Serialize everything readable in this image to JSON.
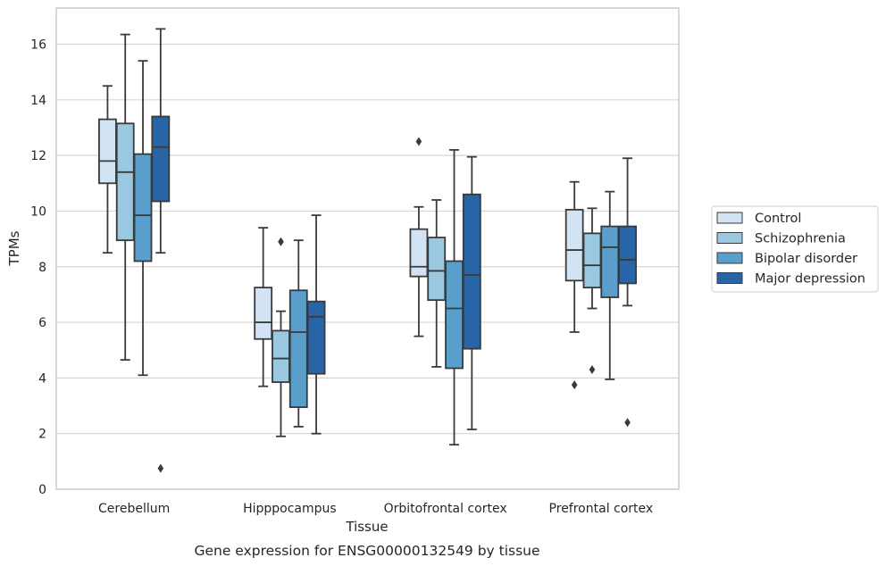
{
  "caption": "Gene expression for ENSG00000132549 by tissue",
  "chart_data": {
    "type": "box",
    "xlabel": "Tissue",
    "ylabel": "TPMs",
    "ylim": [
      0,
      17.3
    ],
    "yticks": [
      0,
      2,
      4,
      6,
      8,
      10,
      12,
      14,
      16
    ],
    "grid": "horizontal",
    "legend_position": "outside-right",
    "categories": [
      "Cerebellum",
      "Hipppocampus",
      "Orbitofrontal cortex",
      "Prefrontal cortex"
    ],
    "series": [
      {
        "name": "Control",
        "color": "#d2e3f3",
        "boxes": [
          {
            "whislo": 8.5,
            "q1": 11.0,
            "med": 11.8,
            "q3": 13.3,
            "whishi": 14.5,
            "fliers": []
          },
          {
            "whislo": 3.7,
            "q1": 5.4,
            "med": 6.0,
            "q3": 7.25,
            "whishi": 9.4,
            "fliers": []
          },
          {
            "whislo": 5.5,
            "q1": 7.65,
            "med": 8.0,
            "q3": 9.35,
            "whishi": 10.15,
            "fliers": [
              12.5
            ]
          },
          {
            "whislo": 5.65,
            "q1": 7.5,
            "med": 8.6,
            "q3": 10.05,
            "whishi": 11.05,
            "fliers": [
              3.75
            ]
          }
        ]
      },
      {
        "name": "Schizophrenia",
        "color": "#9ac8e0",
        "boxes": [
          {
            "whislo": 4.65,
            "q1": 8.95,
            "med": 11.4,
            "q3": 13.15,
            "whishi": 16.35,
            "fliers": []
          },
          {
            "whislo": 1.9,
            "q1": 3.85,
            "med": 4.7,
            "q3": 5.7,
            "whishi": 6.4,
            "fliers": [
              8.9
            ]
          },
          {
            "whislo": 4.4,
            "q1": 6.8,
            "med": 7.85,
            "q3": 9.05,
            "whishi": 10.4,
            "fliers": []
          },
          {
            "whislo": 6.5,
            "q1": 7.25,
            "med": 8.05,
            "q3": 9.2,
            "whishi": 10.1,
            "fliers": [
              4.3
            ]
          }
        ]
      },
      {
        "name": "Bipolar disorder",
        "color": "#5a9fcb",
        "boxes": [
          {
            "whislo": 4.1,
            "q1": 8.2,
            "med": 9.85,
            "q3": 12.05,
            "whishi": 15.4,
            "fliers": []
          },
          {
            "whislo": 2.25,
            "q1": 2.95,
            "med": 5.65,
            "q3": 7.15,
            "whishi": 8.95,
            "fliers": []
          },
          {
            "whislo": 1.6,
            "q1": 4.35,
            "med": 6.5,
            "q3": 8.2,
            "whishi": 12.2,
            "fliers": []
          },
          {
            "whislo": 3.95,
            "q1": 6.9,
            "med": 8.7,
            "q3": 9.45,
            "whishi": 10.7,
            "fliers": []
          }
        ]
      },
      {
        "name": "Major depression",
        "color": "#2865a6",
        "boxes": [
          {
            "whislo": 8.5,
            "q1": 10.35,
            "med": 12.3,
            "q3": 13.4,
            "whishi": 16.55,
            "fliers": [
              0.75
            ]
          },
          {
            "whislo": 2.0,
            "q1": 4.15,
            "med": 6.2,
            "q3": 6.75,
            "whishi": 9.85,
            "fliers": []
          },
          {
            "whislo": 2.15,
            "q1": 5.05,
            "med": 7.7,
            "q3": 10.6,
            "whishi": 11.95,
            "fliers": []
          },
          {
            "whislo": 6.6,
            "q1": 7.4,
            "med": 8.25,
            "q3": 9.45,
            "whishi": 11.9,
            "fliers": [
              2.4
            ]
          }
        ]
      }
    ]
  }
}
